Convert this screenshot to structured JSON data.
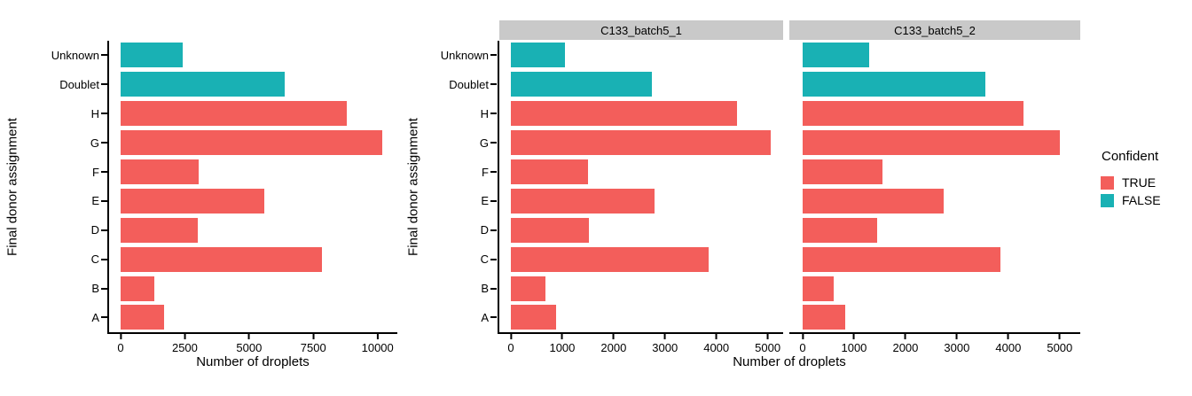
{
  "colors": {
    "confident_true": "#F35E5B",
    "confident_false": "#19B1B4",
    "strip_bg": "#C9C9C9",
    "axis_line": "#000000",
    "text": "#000000",
    "background": "#FFFFFF"
  },
  "legend": {
    "title": "Confident",
    "items": [
      {
        "label": "TRUE",
        "color": "#F35E5B"
      },
      {
        "label": "FALSE",
        "color": "#19B1B4"
      }
    ]
  },
  "chart_data": [
    {
      "type": "bar",
      "orientation": "horizontal",
      "title": "",
      "xlabel": "Number of droplets",
      "ylabel": "Final donor assignment",
      "categories": [
        "Unknown",
        "Doublet",
        "H",
        "G",
        "F",
        "E",
        "D",
        "C",
        "B",
        "A"
      ],
      "values": [
        2400,
        6400,
        8800,
        10200,
        3050,
        5600,
        3000,
        7850,
        1300,
        1700
      ],
      "confident": [
        false,
        false,
        true,
        true,
        true,
        true,
        true,
        true,
        true,
        true
      ],
      "xticks": [
        0,
        2500,
        5000,
        7500,
        10000
      ],
      "xlim": [
        0,
        10770
      ],
      "grid": false,
      "legend_position": "none"
    },
    {
      "type": "bar",
      "orientation": "horizontal",
      "title": "",
      "xlabel": "Number of droplets",
      "ylabel": "Final donor assignment",
      "categories": [
        "Unknown",
        "Doublet",
        "H",
        "G",
        "F",
        "E",
        "D",
        "C",
        "B",
        "A"
      ],
      "confident": [
        false,
        false,
        true,
        true,
        true,
        true,
        true,
        true,
        true,
        true
      ],
      "xticks": [
        0,
        1000,
        2000,
        3000,
        4000,
        5000
      ],
      "grid": false,
      "legend_position": "right",
      "facets": [
        {
          "title": "C133_batch5_1",
          "values": [
            1050,
            2750,
            4400,
            5050,
            1500,
            2800,
            1520,
            3850,
            680,
            880
          ],
          "xlim": [
            0,
            5300
          ]
        },
        {
          "title": "C133_batch5_2",
          "values": [
            1300,
            3550,
            4300,
            5000,
            1550,
            2750,
            1450,
            3850,
            600,
            830
          ],
          "xlim": [
            0,
            5400
          ]
        }
      ]
    }
  ]
}
